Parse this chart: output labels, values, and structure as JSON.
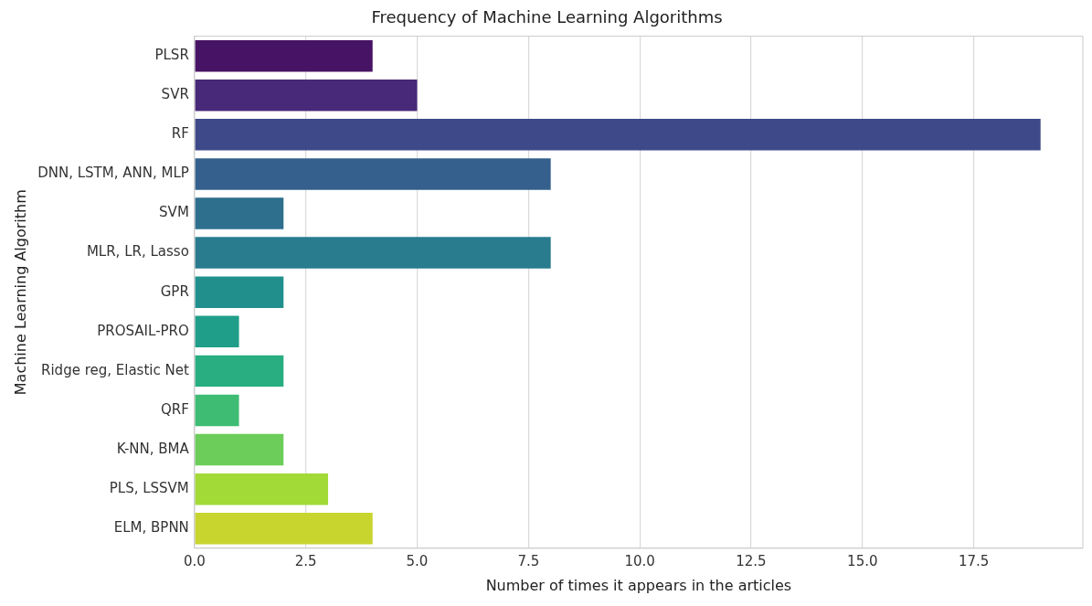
{
  "chart_data": {
    "type": "bar",
    "orientation": "horizontal",
    "title": "Frequency of Machine Learning Algorithms",
    "xlabel": "Number of times it appears in the articles",
    "ylabel": "Machine Learning Algorithm",
    "categories": [
      "PLSR",
      "SVR",
      "RF",
      "DNN, LSTM, ANN, MLP",
      "SVM",
      "MLR, LR, Lasso",
      "GPR",
      "PROSAIL-PRO",
      "Ridge reg, Elastic Net",
      "QRF",
      "K-NN, BMA",
      "PLS, LSSVM",
      "ELM, BPNN"
    ],
    "values": [
      4,
      5,
      19,
      8,
      2,
      8,
      2,
      1,
      2,
      1,
      2,
      3,
      4
    ],
    "colors": [
      "#471365",
      "#482878",
      "#3e4989",
      "#35608d",
      "#2e6f8e",
      "#297b8e",
      "#21908d",
      "#1f9e89",
      "#28ae80",
      "#3fbc73",
      "#6ccd5a",
      "#a2da37",
      "#c8d52f"
    ],
    "xlim": [
      0,
      19.95
    ],
    "xticks": [
      {
        "value": 0,
        "label": "0.0"
      },
      {
        "value": 2.5,
        "label": "2.5"
      },
      {
        "value": 5,
        "label": "5.0"
      },
      {
        "value": 7.5,
        "label": "7.5"
      },
      {
        "value": 10,
        "label": "10.0"
      },
      {
        "value": 12.5,
        "label": "12.5"
      },
      {
        "value": 15,
        "label": "15.0"
      },
      {
        "value": 17.5,
        "label": "17.5"
      }
    ],
    "grid": "x",
    "legend": false
  }
}
